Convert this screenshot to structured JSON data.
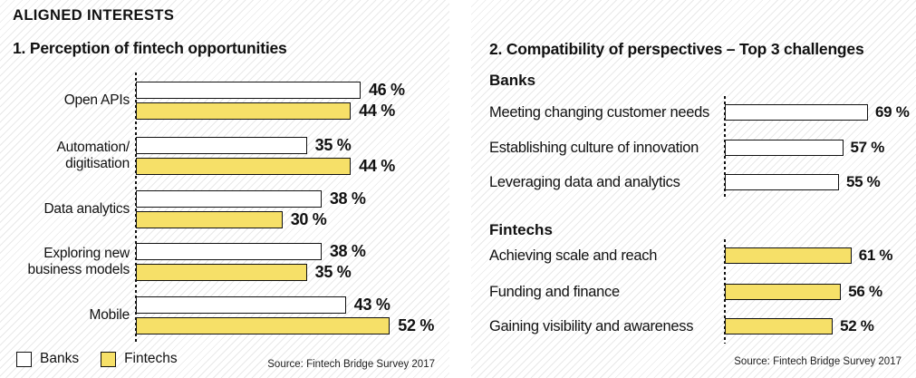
{
  "header": {
    "kicker": "ALIGNED INTERESTS"
  },
  "colors": {
    "banks_fill": "#ffffff",
    "fintechs_fill": "#f6e068",
    "bar_border": "#111111",
    "hatch_line": "#e9e9e9",
    "text": "#111111"
  },
  "chart_data": [
    {
      "type": "bar",
      "orientation": "horizontal",
      "title": "1. Perception of fintech opportunities",
      "categories": [
        "Open APIs",
        "Automation/\ndigitisation",
        "Data analytics",
        "Exploring new\nbusiness models",
        "Mobile"
      ],
      "series": [
        {
          "name": "Banks",
          "color": "#ffffff",
          "values": [
            46,
            35,
            38,
            38,
            43
          ]
        },
        {
          "name": "Fintechs",
          "color": "#f6e068",
          "values": [
            44,
            44,
            30,
            35,
            52
          ]
        }
      ],
      "unit": "%",
      "value_labels": true,
      "grid": false,
      "legend_position": "bottom-left",
      "source": "Source: Fintech Bridge Survey 2017"
    },
    {
      "type": "bar",
      "orientation": "horizontal",
      "title": "2. Compatibility of perspectives – Top 3 challenges",
      "groups": [
        {
          "name": "Banks",
          "color": "#ffffff",
          "categories": [
            "Meeting changing customer needs",
            "Establishing culture of innovation",
            "Leveraging data and analytics"
          ],
          "values": [
            69,
            57,
            55
          ]
        },
        {
          "name": "Fintechs",
          "color": "#f6e068",
          "categories": [
            "Achieving scale and reach",
            "Funding and finance",
            "Gaining visibility and awareness"
          ],
          "values": [
            61,
            56,
            52
          ]
        }
      ],
      "unit": "%",
      "value_labels": true,
      "grid": false,
      "source": "Source: Fintech Bridge Survey 2017"
    }
  ]
}
